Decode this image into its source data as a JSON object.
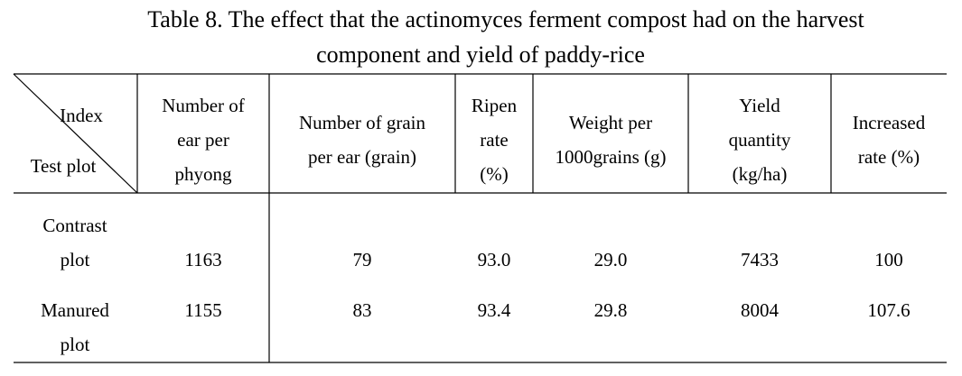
{
  "title": [
    "Table 8. The effect that the actinomyces ferment compost had on the harvest",
    "component and yield of paddy-rice"
  ],
  "table": {
    "corner": {
      "index": "Index",
      "test_plot": "Test plot"
    },
    "columns": [
      [
        "Number of",
        "ear per",
        "phyong"
      ],
      [
        "Number of grain",
        "per ear (grain)"
      ],
      [
        "Ripen",
        "rate",
        "(%)"
      ],
      [
        "Weight per",
        "1000grains (g)"
      ],
      [
        "Yield",
        "quantity",
        "(kg/ha)"
      ],
      [
        "Increased",
        "rate (%)"
      ]
    ],
    "rows": [
      {
        "label": [
          "Contrast",
          "plot"
        ],
        "cells": [
          "1163",
          "79",
          "93.0",
          "29.0",
          "7433",
          "100"
        ]
      },
      {
        "label": [
          "Manured",
          "plot"
        ],
        "cells": [
          "1155",
          "83",
          "93.4",
          "29.8",
          "8004",
          "107.6"
        ]
      }
    ]
  }
}
